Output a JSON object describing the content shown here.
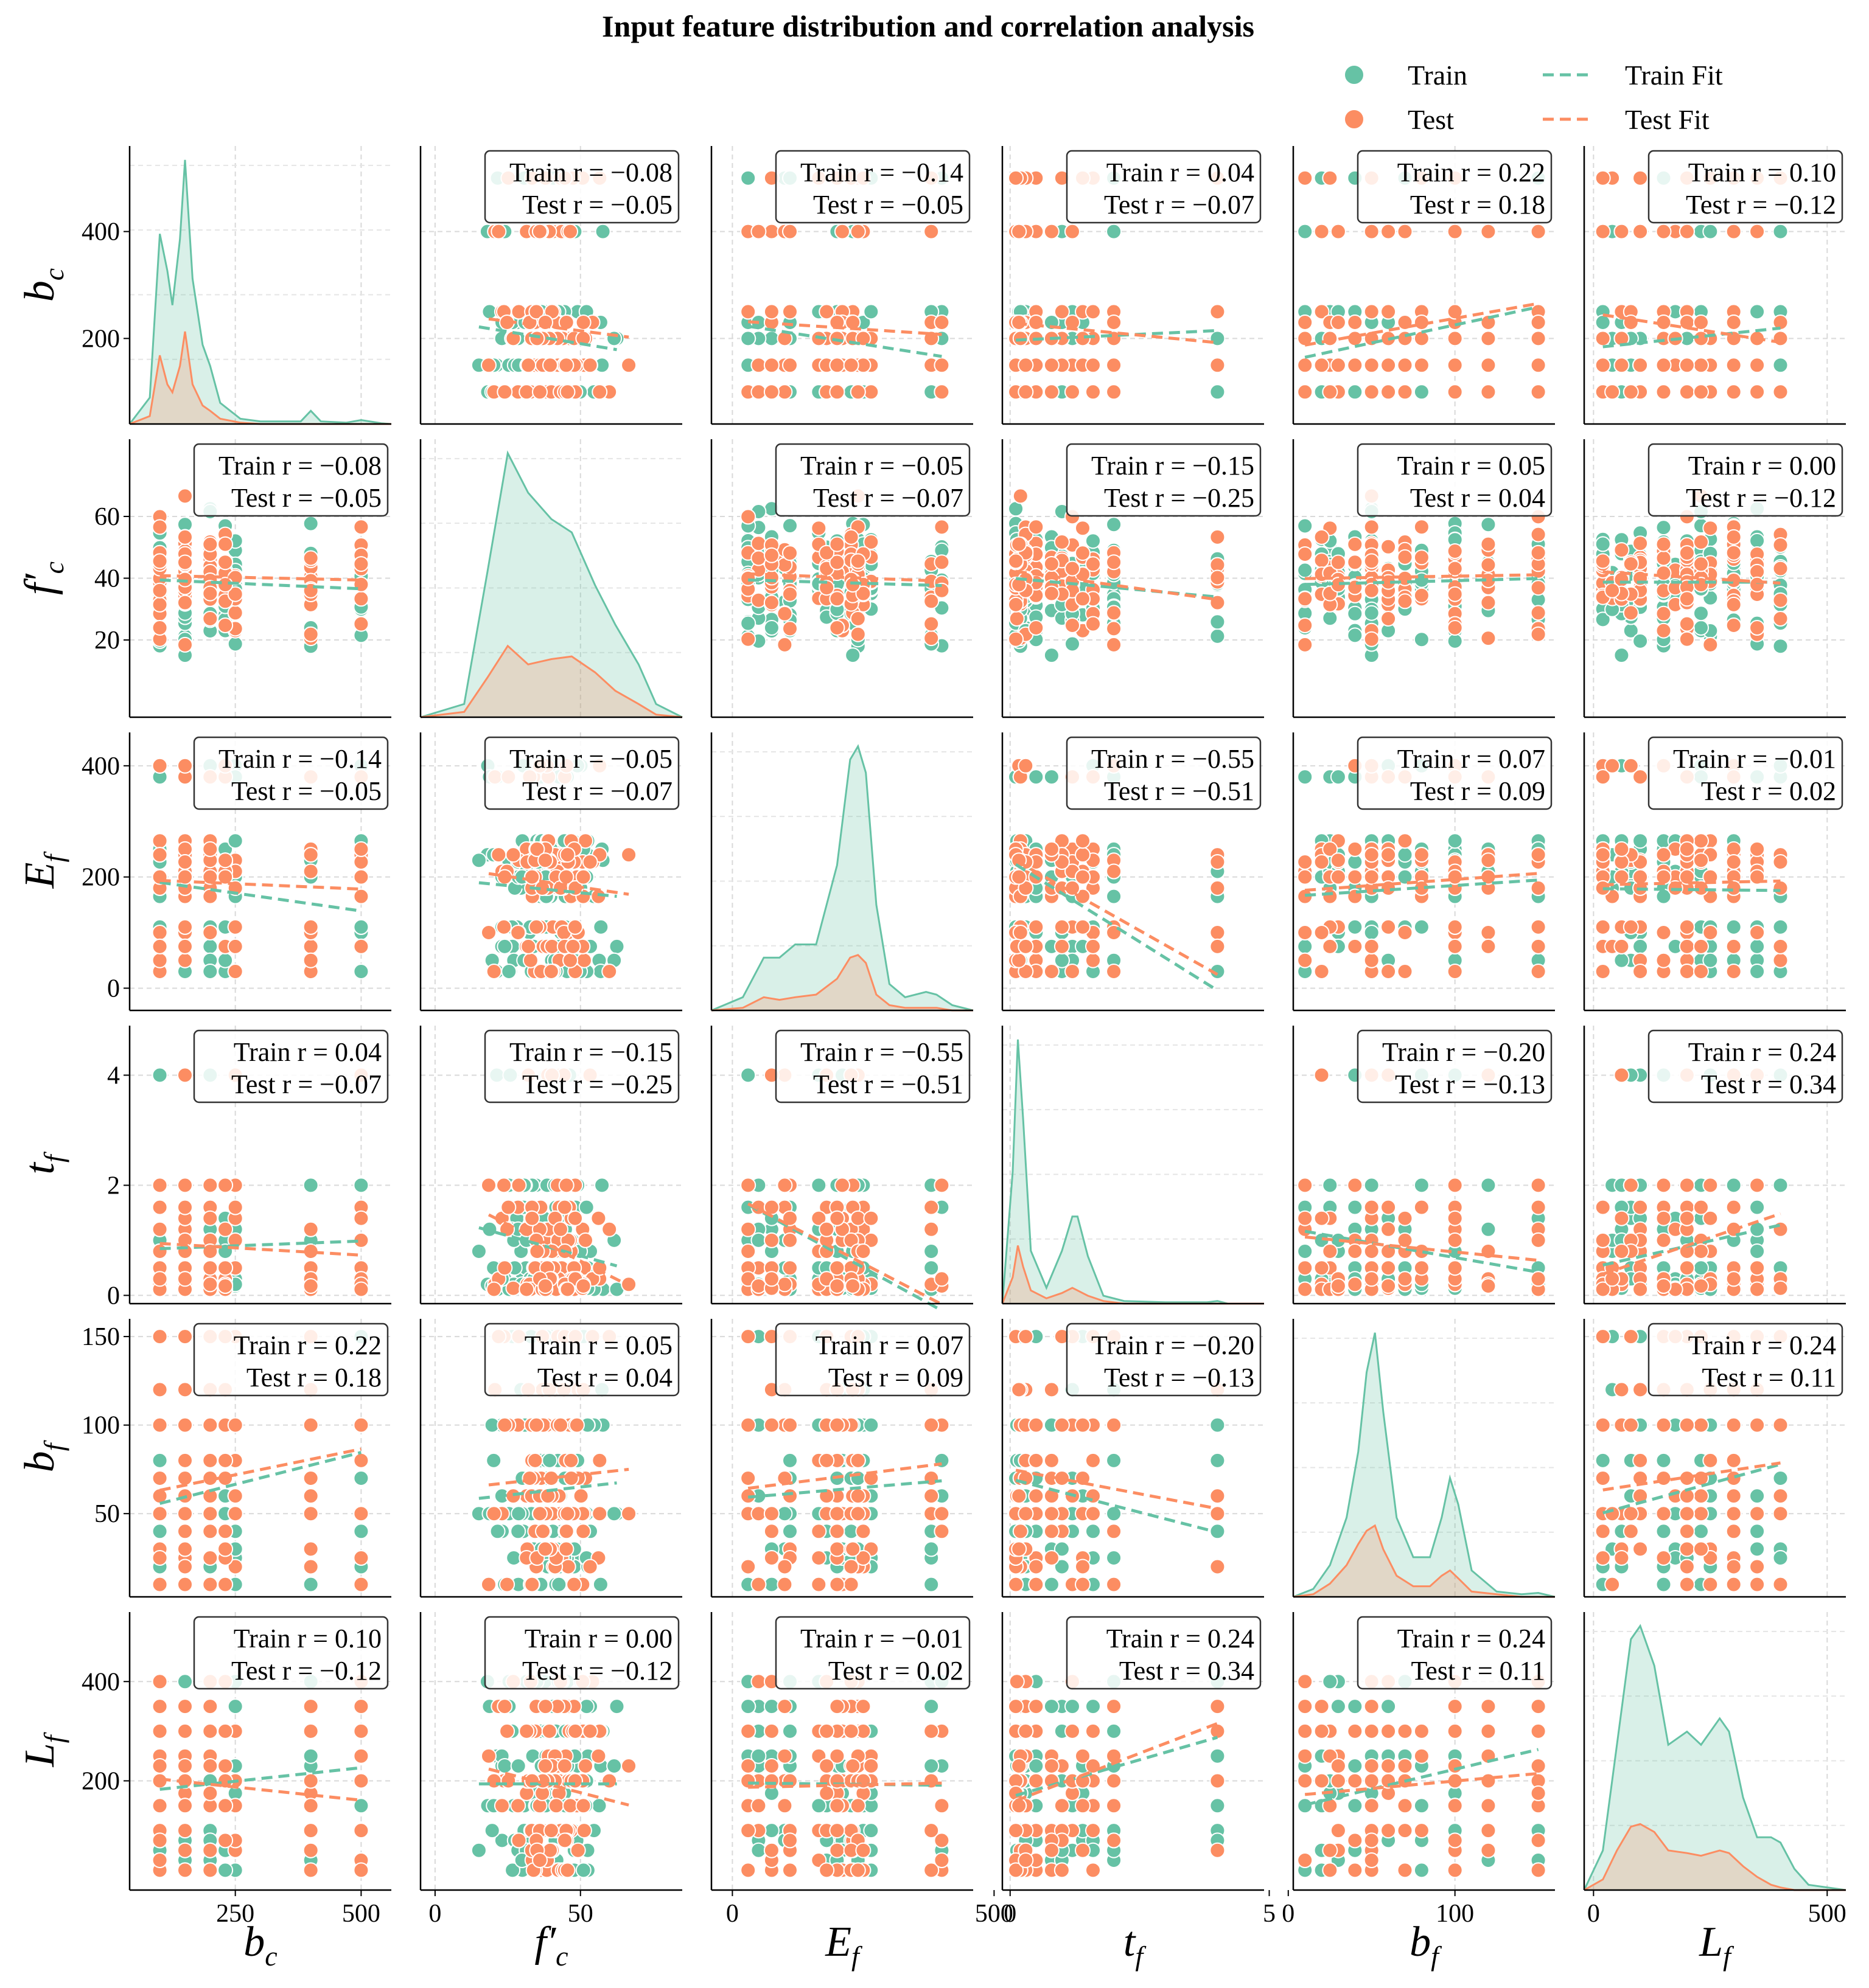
{
  "chart_data": {
    "type": "scatter-matrix",
    "title": "Input feature distribution and correlation analysis",
    "legend": {
      "position": "top-right",
      "items": [
        {
          "label": "Train",
          "kind": "marker",
          "color": "#66c2a5"
        },
        {
          "label": "Train Fit",
          "kind": "dashed-line",
          "color": "#66c2a5"
        },
        {
          "label": "Test",
          "kind": "marker",
          "color": "#fc8d62"
        },
        {
          "label": "Test Fit",
          "kind": "dashed-line",
          "color": "#fc8d62"
        }
      ]
    },
    "colors": {
      "train": "#66c2a5",
      "test": "#fc8d62",
      "annotation_border": "#333333"
    },
    "variables": [
      {
        "key": "bc",
        "base": "b",
        "sub": "c",
        "range": [
          40,
          560
        ],
        "ticks": [
          250,
          500
        ],
        "yticks": [
          200,
          400
        ],
        "mean": 150,
        "sd": 55,
        "pool": [
          100,
          100,
          100,
          150,
          150,
          150,
          150,
          150,
          200,
          200,
          230,
          250,
          400,
          500
        ]
      },
      {
        "key": "fc",
        "base": "f′",
        "sub": "c",
        "range": [
          -5,
          85
        ],
        "ticks": [
          0,
          50
        ],
        "yticks": [
          20,
          40,
          60
        ],
        "mean": 40,
        "sd": 14,
        "pool": []
      },
      {
        "key": "Ef",
        "base": "E",
        "sub": "f",
        "range": [
          -40,
          460
        ],
        "ticks": [
          0,
          500
        ],
        "yticks": [
          0,
          200,
          400
        ],
        "mean": 200,
        "sd": 80,
        "pool": [
          30,
          50,
          75,
          100,
          110,
          165,
          180,
          200,
          210,
          227,
          230,
          240,
          250,
          265,
          380,
          400
        ]
      },
      {
        "key": "tf",
        "base": "t",
        "sub": "f",
        "range": [
          -0.15,
          4.9
        ],
        "ticks": [
          0,
          5
        ],
        "yticks": [
          0,
          2,
          4
        ],
        "mean": 0.5,
        "sd": 0.6,
        "pool": [
          0.11,
          0.13,
          0.17,
          0.2,
          0.2,
          0.3,
          0.5,
          0.8,
          1.0,
          1.2,
          1.4,
          1.6,
          2.0,
          4.0
        ]
      },
      {
        "key": "bf",
        "base": "b",
        "sub": "f",
        "range": [
          3,
          160
        ],
        "ticks": [
          0,
          100
        ],
        "yticks": [
          50,
          100,
          150
        ],
        "mean": 55,
        "sd": 27,
        "pool": [
          10,
          20,
          25,
          30,
          40,
          50,
          50,
          50,
          50,
          60,
          70,
          80,
          100,
          100,
          120,
          150
        ]
      },
      {
        "key": "Lf",
        "base": "L",
        "sub": "f",
        "range": [
          -20,
          540
        ],
        "ticks": [
          0,
          500
        ],
        "yticks": [
          200,
          400
        ],
        "mean": 180,
        "sd": 95,
        "pool": [
          20,
          40,
          60,
          80,
          100,
          100,
          150,
          150,
          175,
          200,
          200,
          230,
          250,
          300,
          300,
          350,
          400
        ]
      }
    ],
    "correlations": [
      [
        null,
        {
          "train": -0.08,
          "test": -0.05
        },
        {
          "train": -0.14,
          "test": -0.05
        },
        {
          "train": 0.04,
          "test": -0.07
        },
        {
          "train": 0.22,
          "test": 0.18
        },
        {
          "train": 0.1,
          "test": -0.12
        }
      ],
      [
        {
          "train": -0.08,
          "test": -0.05
        },
        null,
        {
          "train": -0.05,
          "test": -0.07
        },
        {
          "train": -0.15,
          "test": -0.25
        },
        {
          "train": 0.05,
          "test": 0.04
        },
        {
          "train": 0.0,
          "test": -0.12
        }
      ],
      [
        {
          "train": -0.14,
          "test": -0.05
        },
        {
          "train": -0.05,
          "test": -0.07
        },
        null,
        {
          "train": -0.55,
          "test": -0.51
        },
        {
          "train": 0.07,
          "test": 0.09
        },
        {
          "train": -0.01,
          "test": 0.02
        }
      ],
      [
        {
          "train": 0.04,
          "test": -0.07
        },
        {
          "train": -0.15,
          "test": -0.25
        },
        {
          "train": -0.55,
          "test": -0.51
        },
        null,
        {
          "train": -0.2,
          "test": -0.13
        },
        {
          "train": 0.24,
          "test": 0.34
        }
      ],
      [
        {
          "train": 0.22,
          "test": 0.18
        },
        {
          "train": 0.05,
          "test": 0.04
        },
        {
          "train": 0.07,
          "test": 0.09
        },
        {
          "train": -0.2,
          "test": -0.13
        },
        null,
        {
          "train": 0.24,
          "test": 0.11
        }
      ],
      [
        {
          "train": 0.1,
          "test": -0.12
        },
        {
          "train": 0.0,
          "test": -0.12
        },
        {
          "train": -0.01,
          "test": 0.02
        },
        {
          "train": 0.24,
          "test": 0.34
        },
        {
          "train": 0.24,
          "test": 0.11
        },
        null
      ]
    ],
    "annotation_template": {
      "train_prefix": "Train r = ",
      "test_prefix": "Test r = "
    },
    "kde": {
      "bc": {
        "x": [
          40,
          80,
          100,
          115,
          125,
          140,
          150,
          165,
          185,
          200,
          220,
          260,
          300,
          380,
          400,
          420,
          470,
          500,
          540,
          560
        ],
        "train": [
          0,
          0.1,
          0.72,
          0.58,
          0.45,
          0.7,
          1.0,
          0.55,
          0.3,
          0.22,
          0.08,
          0.02,
          0.01,
          0.01,
          0.05,
          0.01,
          0.005,
          0.015,
          0.003,
          0
        ],
        "test": [
          0,
          0.03,
          0.26,
          0.15,
          0.12,
          0.22,
          0.35,
          0.15,
          0.07,
          0.05,
          0.02,
          0.005,
          0,
          0,
          0,
          0,
          0,
          0,
          0,
          0
        ]
      },
      "fc": {
        "x": [
          -5,
          10,
          18,
          25,
          32,
          40,
          47,
          55,
          62,
          70,
          76,
          85
        ],
        "train": [
          0,
          0.05,
          0.55,
          1.0,
          0.85,
          0.75,
          0.7,
          0.5,
          0.35,
          0.2,
          0.05,
          0
        ],
        "test": [
          0,
          0.02,
          0.15,
          0.27,
          0.2,
          0.22,
          0.23,
          0.17,
          0.1,
          0.05,
          0.01,
          0
        ]
      },
      "Ef": {
        "x": [
          -40,
          20,
          60,
          90,
          120,
          160,
          200,
          225,
          240,
          255,
          275,
          300,
          330,
          370,
          390,
          420,
          460
        ],
        "train": [
          0,
          0.05,
          0.2,
          0.2,
          0.25,
          0.25,
          0.55,
          0.95,
          1.0,
          0.9,
          0.4,
          0.1,
          0.05,
          0.07,
          0.06,
          0.02,
          0
        ],
        "test": [
          0,
          0.01,
          0.05,
          0.04,
          0.05,
          0.06,
          0.12,
          0.2,
          0.21,
          0.18,
          0.06,
          0.02,
          0.01,
          0.01,
          0.01,
          0,
          0
        ]
      },
      "tf": {
        "x": [
          -0.15,
          0.05,
          0.15,
          0.25,
          0.4,
          0.7,
          1.0,
          1.2,
          1.3,
          1.5,
          1.8,
          2.2,
          3,
          3.8,
          4,
          4.2,
          4.9
        ],
        "train": [
          0,
          0.5,
          1.0,
          0.7,
          0.2,
          0.06,
          0.2,
          0.33,
          0.33,
          0.18,
          0.03,
          0.01,
          0.005,
          0.005,
          0.01,
          0,
          0
        ],
        "test": [
          0,
          0.1,
          0.22,
          0.14,
          0.05,
          0.02,
          0.04,
          0.06,
          0.05,
          0.03,
          0.01,
          0,
          0,
          0,
          0,
          0,
          0
        ]
      },
      "bf": {
        "x": [
          3,
          15,
          25,
          35,
          42,
          47,
          52,
          57,
          65,
          75,
          85,
          92,
          97,
          102,
          110,
          125,
          140,
          150,
          160
        ],
        "train": [
          0,
          0.03,
          0.12,
          0.3,
          0.55,
          0.85,
          1.0,
          0.7,
          0.3,
          0.15,
          0.15,
          0.3,
          0.45,
          0.35,
          0.1,
          0.02,
          0.01,
          0.015,
          0
        ],
        "test": [
          0,
          0.01,
          0.05,
          0.12,
          0.2,
          0.25,
          0.27,
          0.18,
          0.08,
          0.04,
          0.04,
          0.08,
          0.1,
          0.07,
          0.02,
          0.01,
          0,
          0,
          0
        ]
      },
      "Lf": {
        "x": [
          -20,
          20,
          50,
          80,
          100,
          130,
          160,
          200,
          230,
          270,
          290,
          320,
          350,
          380,
          400,
          430,
          460,
          540
        ],
        "train": [
          0,
          0.15,
          0.55,
          0.95,
          1.0,
          0.85,
          0.55,
          0.6,
          0.55,
          0.65,
          0.6,
          0.35,
          0.2,
          0.2,
          0.18,
          0.08,
          0.02,
          0
        ],
        "test": [
          0,
          0.04,
          0.15,
          0.24,
          0.25,
          0.22,
          0.15,
          0.14,
          0.13,
          0.15,
          0.14,
          0.09,
          0.05,
          0.02,
          0.01,
          0,
          0,
          0
        ]
      }
    }
  }
}
